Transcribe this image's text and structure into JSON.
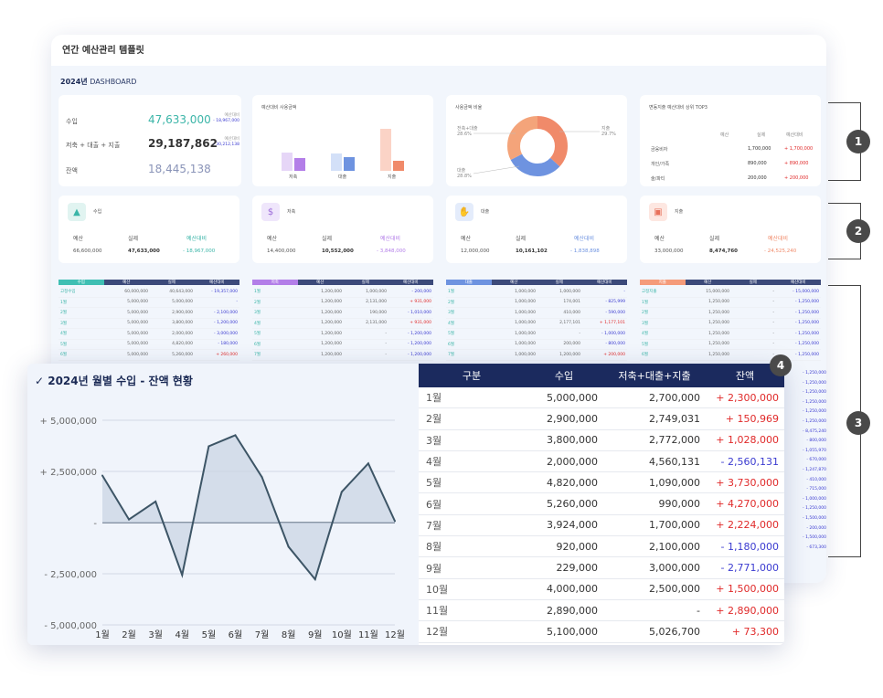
{
  "sheet": {
    "title": "연간 예산관리 템플릿",
    "dashboard_year": "2024년",
    "dashboard_label": "DASHBOARD"
  },
  "summary": {
    "rows": [
      {
        "label": "수입",
        "value": "47,633,000",
        "sub1": "예산대비",
        "sub2": "- 18,967,000",
        "color": "#3bb5a8"
      },
      {
        "label": "저축 + 대출 + 지출",
        "value": "29,187,862",
        "sub1": "예산대비",
        "sub2": "- 30,212,138",
        "color": "#333333"
      },
      {
        "label": "잔액",
        "value": "18,445,138",
        "sub1": "",
        "sub2": "",
        "color": "#8a94b8"
      }
    ]
  },
  "usage_chart": {
    "title": "예산대비 사용금액",
    "categories": [
      "저축",
      "대출",
      "지출"
    ]
  },
  "ratio_chart": {
    "title": "사용금액 비율",
    "left_top": "전축+대출",
    "left_top_pct": "28.6%",
    "left_bottom": "대출",
    "left_bottom_pct": "28.8%",
    "right_top": "지출",
    "right_top_pct": "29.7%"
  },
  "top3": {
    "title": "변동지출 예산대비 상위 TOP3",
    "headers": [
      "예산",
      "실제",
      "예산대비"
    ],
    "rows": [
      {
        "name": "금융비자",
        "budget": "",
        "actual": "1,700,000",
        "diff": "+ 1,700,000"
      },
      {
        "name": "개인/가족",
        "budget": "",
        "actual": "890,000",
        "diff": "+ 890,000"
      },
      {
        "name": "술/파티",
        "budget": "",
        "actual": "200,000",
        "diff": "+ 200,000"
      }
    ]
  },
  "categories": [
    {
      "name": "수입",
      "icon": "chart-up-icon",
      "glyph": "▲",
      "icon_bg": "#e1f4f1",
      "icon_color": "#3bb5a8",
      "budget": "66,600,000",
      "actual": "47,633,000",
      "diff": "- 18,967,000",
      "accent": "#3bb5a8"
    },
    {
      "name": "저축",
      "icon": "money-bag-icon",
      "glyph": "$",
      "icon_bg": "#efe6fb",
      "icon_color": "#9b6ad8",
      "budget": "14,400,000",
      "actual": "10,552,000",
      "diff": "- 3,848,000",
      "accent": "#b37ee8"
    },
    {
      "name": "대출",
      "icon": "hand-coin-icon",
      "glyph": "✋",
      "icon_bg": "#e4ecfb",
      "icon_color": "#5b84dc",
      "budget": "12,000,000",
      "actual": "10,161,102",
      "diff": "- 1,838,898",
      "accent": "#6e93e0"
    },
    {
      "name": "지출",
      "icon": "wallet-icon",
      "glyph": "▣",
      "icon_bg": "#fde7e1",
      "icon_color": "#e8705a",
      "budget": "33,000,000",
      "actual": "8,474,760",
      "diff": "- 24,525,240",
      "accent": "#f08a6a"
    }
  ],
  "card_labels": {
    "budget": "예산",
    "actual": "실제",
    "vs": "예산대비"
  },
  "mini_headers": [
    "예산",
    "실제",
    "예산대비"
  ],
  "mini_tables": [
    {
      "title": "수입",
      "color": "#3fbfb3",
      "rows": [
        [
          "고정수입",
          "60,000,000",
          "40,643,000",
          "- 19,357,000"
        ],
        [
          "1월",
          "5,000,000",
          "5,000,000",
          "-"
        ],
        [
          "2월",
          "5,000,000",
          "2,900,000",
          "- 2,100,000"
        ],
        [
          "3월",
          "5,000,000",
          "3,800,000",
          "- 1,200,000"
        ],
        [
          "4월",
          "5,000,000",
          "2,000,000",
          "- 3,000,000"
        ],
        [
          "5월",
          "5,000,000",
          "4,820,000",
          "- 180,000"
        ],
        [
          "6월",
          "5,000,000",
          "5,260,000",
          "+ 260,000"
        ]
      ]
    },
    {
      "title": "저축",
      "color": "#b37ee8",
      "rows": [
        [
          "1월",
          "1,200,000",
          "1,000,000",
          "- 200,000"
        ],
        [
          "2월",
          "1,200,000",
          "2,131,000",
          "+ 931,000"
        ],
        [
          "3월",
          "1,200,000",
          "190,000",
          "- 1,010,000"
        ],
        [
          "4월",
          "1,200,000",
          "2,131,000",
          "+ 931,000"
        ],
        [
          "5월",
          "1,200,000",
          "-",
          "- 1,200,000"
        ],
        [
          "6월",
          "1,200,000",
          "-",
          "- 1,200,000"
        ],
        [
          "7월",
          "1,200,000",
          "-",
          "- 1,200,000"
        ]
      ]
    },
    {
      "title": "대출",
      "color": "#6e93e0",
      "rows": [
        [
          "1월",
          "1,000,000",
          "1,000,000",
          "-"
        ],
        [
          "2월",
          "1,000,000",
          "174,001",
          "- 825,999"
        ],
        [
          "3월",
          "1,000,000",
          "410,000",
          "- 590,000"
        ],
        [
          "4월",
          "1,000,000",
          "2,177,101",
          "+ 1,177,101"
        ],
        [
          "5월",
          "1,000,000",
          "-",
          "- 1,000,000"
        ],
        [
          "6월",
          "1,000,000",
          "200,000",
          "- 800,000"
        ],
        [
          "7월",
          "1,000,000",
          "1,200,000",
          "+ 200,000"
        ]
      ]
    },
    {
      "title": "지출",
      "color": "#f59b7a",
      "rows": [
        [
          "고정지출",
          "15,000,000",
          "-",
          "- 15,000,000"
        ],
        [
          "1월",
          "1,250,000",
          "-",
          "- 1,250,000"
        ],
        [
          "2월",
          "1,250,000",
          "-",
          "- 1,250,000"
        ],
        [
          "3월",
          "1,250,000",
          "-",
          "- 1,250,000"
        ],
        [
          "4월",
          "1,250,000",
          "-",
          "- 1,250,000"
        ],
        [
          "5월",
          "1,250,000",
          "-",
          "- 1,250,000"
        ],
        [
          "6월",
          "1,250,000",
          "-",
          "- 1,250,000"
        ]
      ]
    }
  ],
  "right_overflow": [
    "- 1,250,000",
    "- 1,250,000",
    "- 1,250,000",
    "- 1,250,000",
    "- 1,250,000",
    "- 1,250,000",
    "- 8,475,240",
    "- 800,000",
    "- 1,055,970",
    "- 670,000",
    "- 1,247,870",
    "- 410,000",
    "- 715,000",
    "- 1,000,000",
    "- 1,250,000",
    "- 1,500,000",
    "- 200,000",
    "- 1,500,000",
    "- 673,300"
  ],
  "callouts": [
    "1",
    "2",
    "3",
    "4"
  ],
  "line_chart": {
    "title": "✓ 2024년 월별 수입 - 잔액 현황",
    "y_ticks": [
      "+ 5,000,000",
      "+ 2,500,000",
      "-",
      "- 2,500,000",
      "- 5,000,000"
    ],
    "x_ticks": [
      "1월",
      "2월",
      "3월",
      "4월",
      "5월",
      "6월",
      "7월",
      "8월",
      "9월",
      "10월",
      "11월",
      "12월"
    ]
  },
  "chart_data": {
    "type": "area",
    "title": "2024년 월별 수입 - 잔액 현황",
    "categories": [
      "1월",
      "2월",
      "3월",
      "4월",
      "5월",
      "6월",
      "7월",
      "8월",
      "9월",
      "10월",
      "11월",
      "12월"
    ],
    "series": [
      {
        "values": [
          2300000,
          150969,
          1028000,
          -2560131,
          3730000,
          4270000,
          2224000,
          -1180000,
          -2771000,
          1500000,
          2890000,
          73300
        ]
      }
    ],
    "ylim": [
      -5000000,
      5000000
    ]
  },
  "main_table": {
    "headers": [
      "구분",
      "수입",
      "저축+대출+지출",
      "잔액"
    ],
    "rows": [
      {
        "month": "1월",
        "income": "5,000,000",
        "spend": "2,700,000",
        "balance": "+ 2,300,000",
        "sign": "pos"
      },
      {
        "month": "2월",
        "income": "2,900,000",
        "spend": "2,749,031",
        "balance": "+ 150,969",
        "sign": "pos"
      },
      {
        "month": "3월",
        "income": "3,800,000",
        "spend": "2,772,000",
        "balance": "+ 1,028,000",
        "sign": "pos"
      },
      {
        "month": "4월",
        "income": "2,000,000",
        "spend": "4,560,131",
        "balance": "- 2,560,131",
        "sign": "neg"
      },
      {
        "month": "5월",
        "income": "4,820,000",
        "spend": "1,090,000",
        "balance": "+ 3,730,000",
        "sign": "pos"
      },
      {
        "month": "6월",
        "income": "5,260,000",
        "spend": "990,000",
        "balance": "+ 4,270,000",
        "sign": "pos"
      },
      {
        "month": "7월",
        "income": "3,924,000",
        "spend": "1,700,000",
        "balance": "+ 2,224,000",
        "sign": "pos"
      },
      {
        "month": "8월",
        "income": "920,000",
        "spend": "2,100,000",
        "balance": "- 1,180,000",
        "sign": "neg"
      },
      {
        "month": "9월",
        "income": "229,000",
        "spend": "3,000,000",
        "balance": "- 2,771,000",
        "sign": "neg"
      },
      {
        "month": "10월",
        "income": "4,000,000",
        "spend": "2,500,000",
        "balance": "+ 1,500,000",
        "sign": "pos"
      },
      {
        "month": "11월",
        "income": "2,890,000",
        "spend": "-",
        "balance": "+ 2,890,000",
        "sign": "pos"
      },
      {
        "month": "12월",
        "income": "5,100,000",
        "spend": "5,026,700",
        "balance": "+ 73,300",
        "sign": "pos"
      }
    ]
  }
}
